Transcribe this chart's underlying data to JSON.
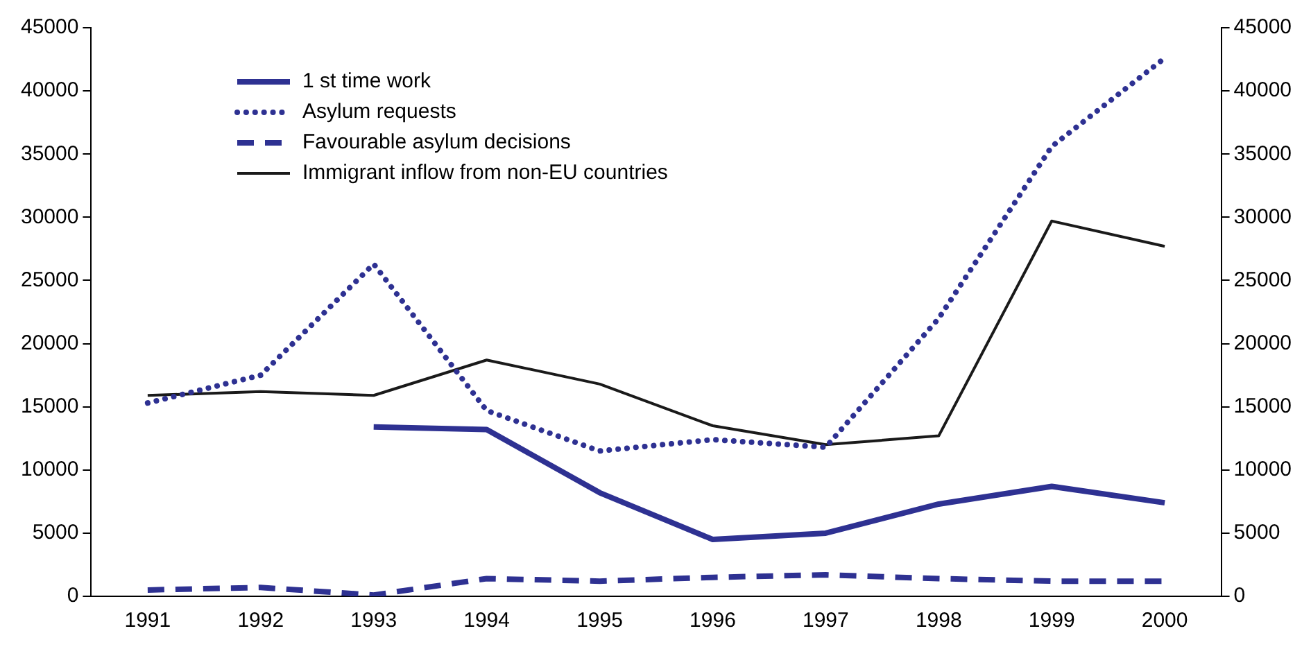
{
  "chart_data": {
    "type": "line",
    "categories": [
      "1991",
      "1992",
      "1993",
      "1994",
      "1995",
      "1996",
      "1997",
      "1998",
      "1999",
      "2000"
    ],
    "series": [
      {
        "name": "1 st time work",
        "color": "#2e3192",
        "line_style": "solid",
        "values": [
          null,
          null,
          13400,
          13200,
          8200,
          4500,
          5000,
          7300,
          8700,
          7400
        ]
      },
      {
        "name": "Asylum requests",
        "color": "#2e3192",
        "line_style": "dotted",
        "values": [
          15300,
          17500,
          26300,
          14700,
          11500,
          12400,
          11800,
          22000,
          35600,
          42600
        ]
      },
      {
        "name": "Favourable asylum decisions",
        "color": "#2e3192",
        "line_style": "dashed",
        "values": [
          500,
          700,
          100,
          1400,
          1200,
          1500,
          1700,
          1400,
          1200,
          1200
        ]
      },
      {
        "name": "Immigrant inflow from non-EU countries",
        "color": "#1a1a1a",
        "line_style": "solid",
        "values": [
          15900,
          16200,
          15900,
          18700,
          16800,
          13500,
          12000,
          12700,
          29700,
          27700
        ]
      }
    ],
    "ylim": [
      0,
      45000
    ],
    "yticks": [
      0,
      5000,
      10000,
      15000,
      20000,
      25000,
      30000,
      35000,
      40000,
      45000
    ],
    "y2lim": [
      0,
      45000
    ],
    "y2ticks": [
      0,
      5000,
      10000,
      15000,
      20000,
      25000,
      30000,
      35000,
      40000,
      45000
    ],
    "grid": false,
    "legend": "top left",
    "marker": "none"
  }
}
